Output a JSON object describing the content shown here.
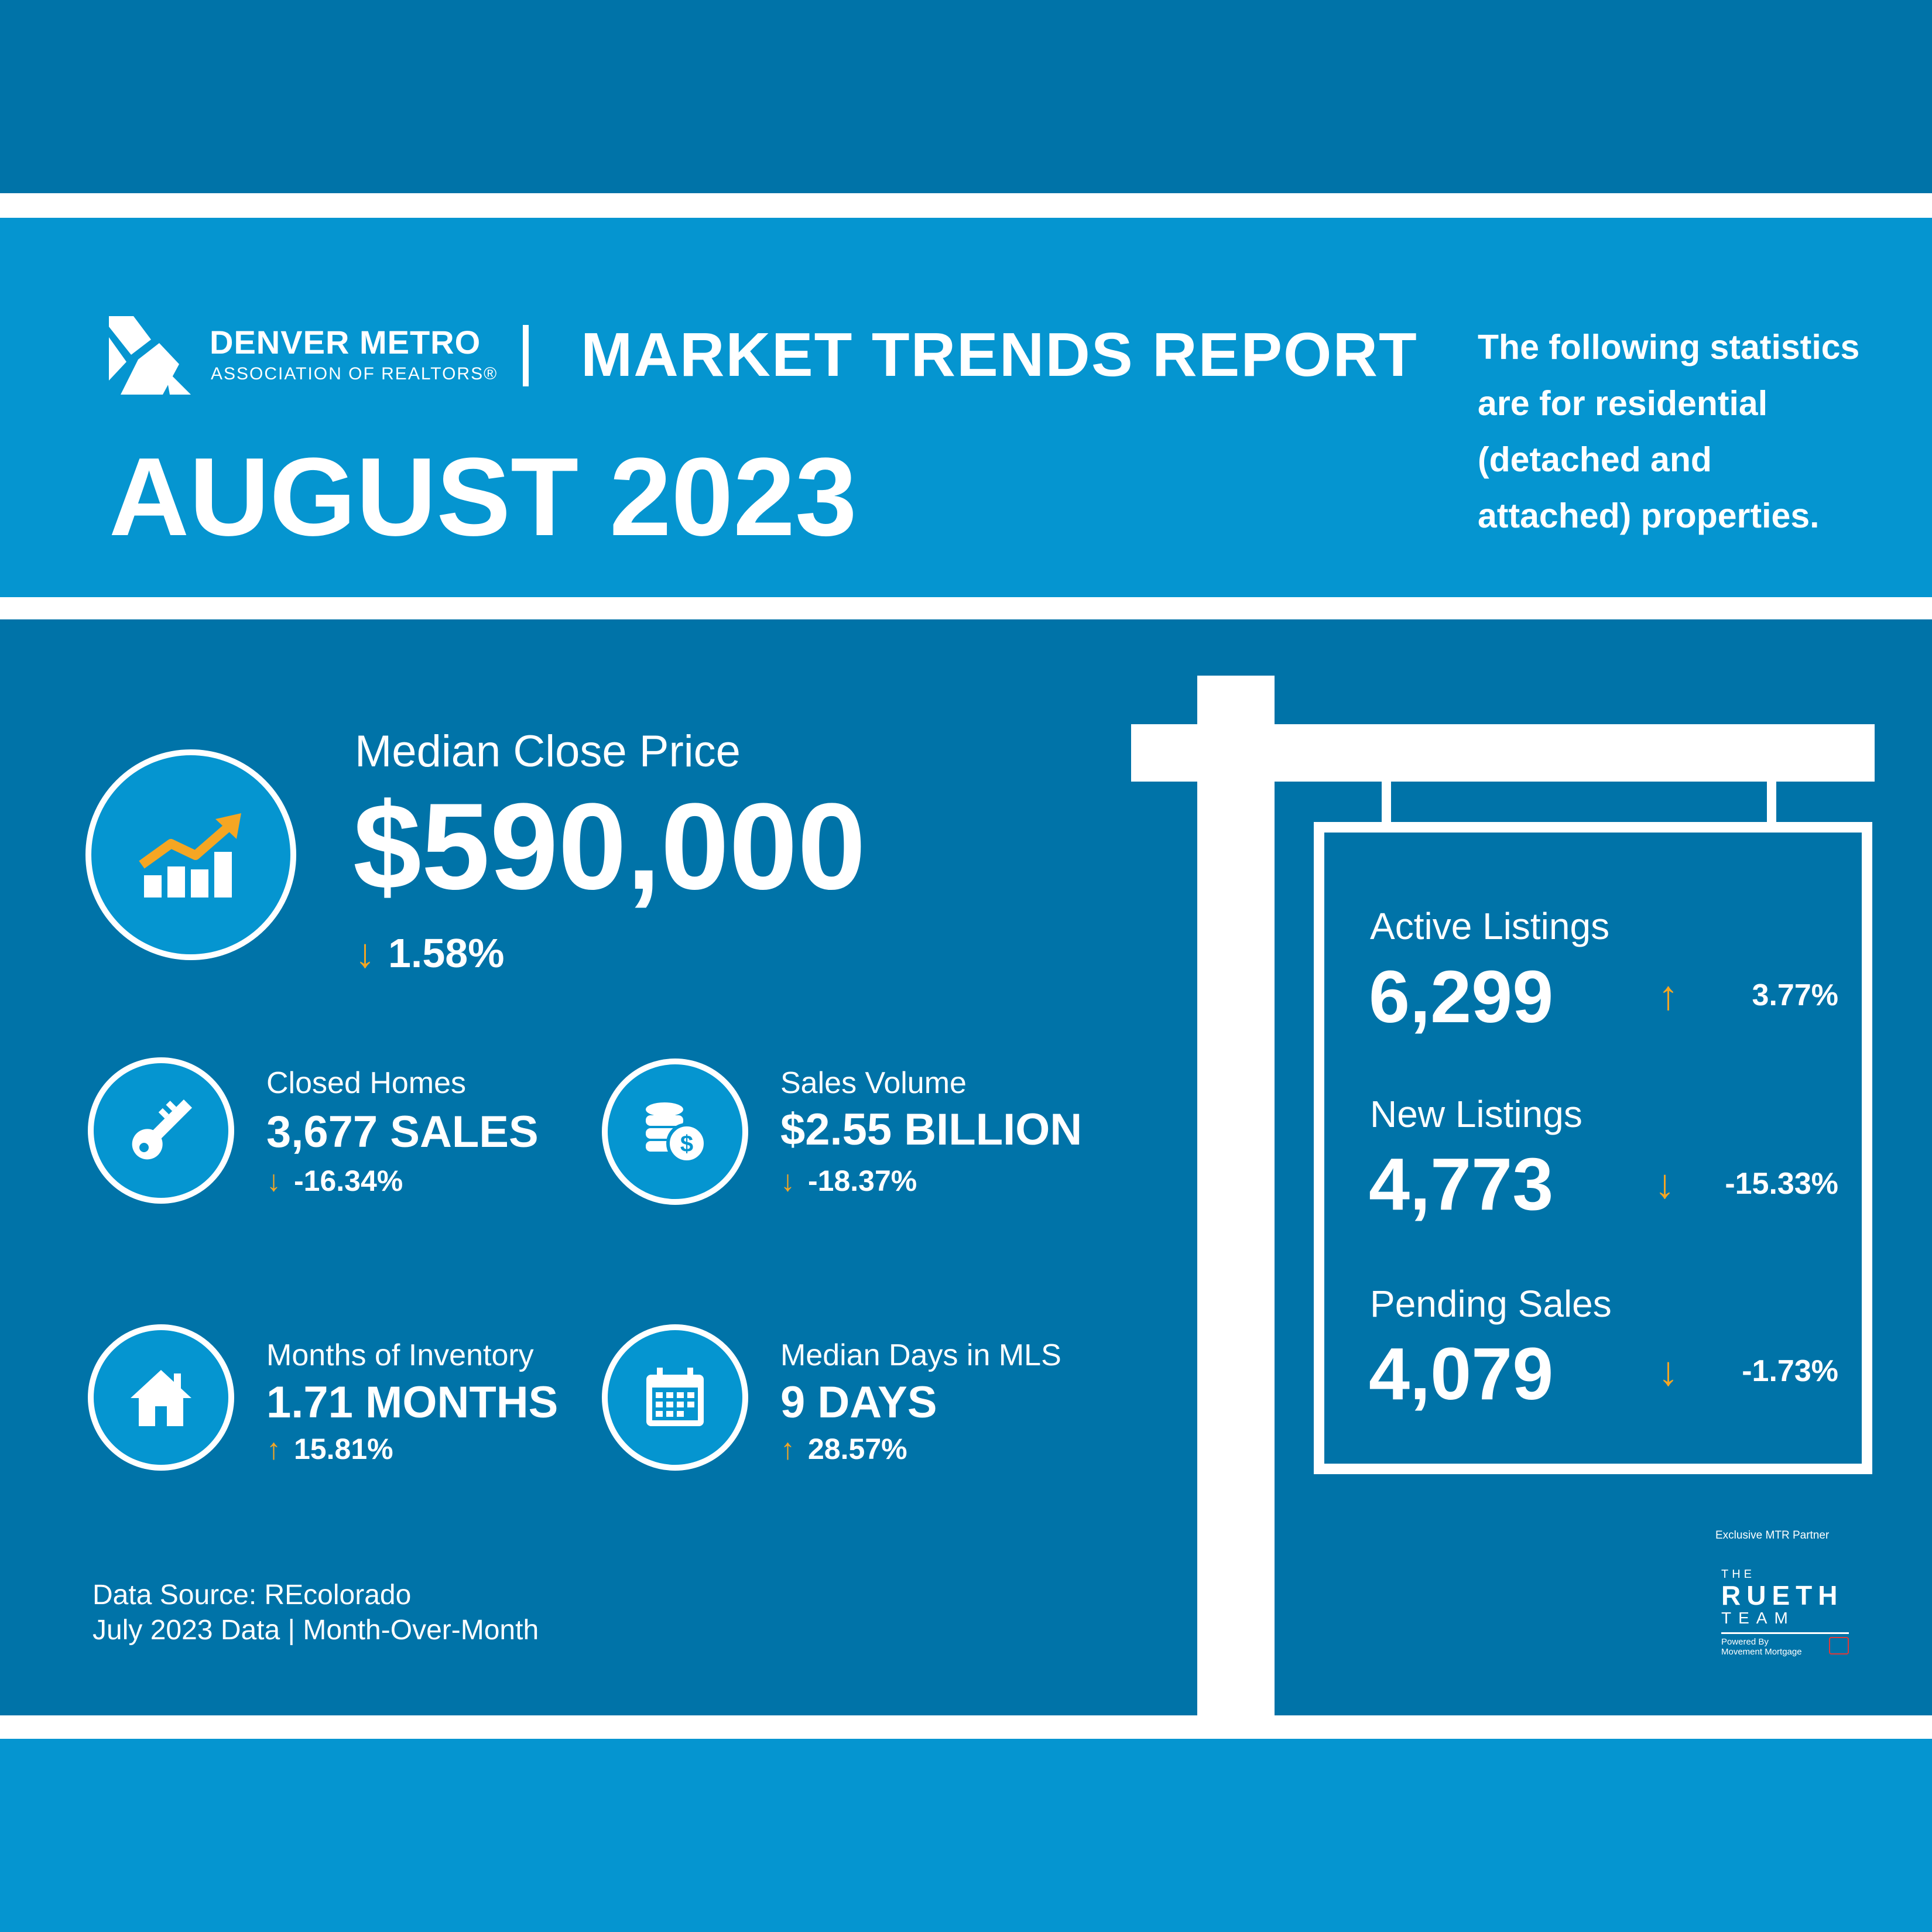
{
  "header": {
    "org_name": "DENVER METRO",
    "org_subtitle": "ASSOCIATION OF REALTORS®",
    "report_title": "MARKET TRENDS REPORT",
    "report_month": "AUGUST 2023",
    "intro_lines": [
      "The following statistics",
      "are for residential",
      "(detached and",
      "attached) properties."
    ]
  },
  "headline_stat": {
    "label": "Median Close Price",
    "value": "$590,000",
    "change": "1.58%",
    "direction": "down",
    "icon": "growth-chart-icon"
  },
  "stats": {
    "closed_homes": {
      "label": "Closed Homes",
      "value": "3,677 SALES",
      "change": "-16.34%",
      "direction": "down",
      "icon": "key-icon"
    },
    "sales_volume": {
      "label": "Sales Volume",
      "value": "$2.55 BILLION",
      "change": "-18.37%",
      "direction": "down",
      "icon": "coins-icon"
    },
    "months_inventory": {
      "label": "Months of Inventory",
      "value": "1.71 MONTHS",
      "change": "15.81%",
      "direction": "up",
      "icon": "house-icon"
    },
    "days_mls": {
      "label": "Median Days in MLS",
      "value": "9 DAYS",
      "change": "28.57%",
      "direction": "up",
      "icon": "calendar-icon"
    }
  },
  "sign_stats": {
    "active": {
      "label": "Active Listings",
      "value": "6,299",
      "change": "3.77%",
      "direction": "up"
    },
    "new": {
      "label": "New Listings",
      "value": "4,773",
      "change": "-15.33%",
      "direction": "down"
    },
    "pending": {
      "label": "Pending Sales",
      "value": "4,079",
      "change": "-1.73%",
      "direction": "down"
    }
  },
  "footer": {
    "source_line1": "Data Source: REcolorado",
    "source_line2": "July 2023 Data | Month-Over-Month"
  },
  "partner": {
    "caption": "Exclusive MTR Partner",
    "logo_the": "THE",
    "logo_name": "RUETH",
    "logo_team": "TEAM",
    "powered_line1": "Powered By",
    "powered_line2": "Movement Mortgage"
  },
  "colors": {
    "dark_blue": "#0073a8",
    "light_blue": "#0595d0",
    "arrow_orange": "#f5a623",
    "white": "#ffffff"
  }
}
